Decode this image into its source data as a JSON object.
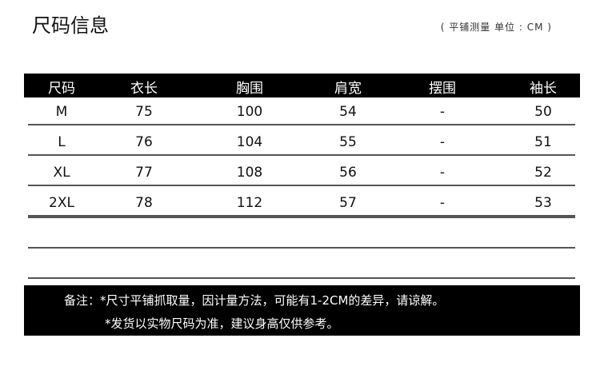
{
  "title": "尺码信息",
  "unit_note": "( 平铺测量  单位 : CM )",
  "table": {
    "headers": [
      "尺码",
      "衣长",
      "胸围",
      "肩宽",
      "摆围",
      "袖长"
    ],
    "rows": [
      [
        "M",
        "75",
        "100",
        "54",
        "-",
        "50"
      ],
      [
        "L",
        "76",
        "104",
        "55",
        "-",
        "51"
      ],
      [
        "XL",
        "77",
        "108",
        "56",
        "-",
        "52"
      ],
      [
        "2XL",
        "78",
        "112",
        "57",
        "-",
        "53"
      ]
    ]
  },
  "notes": {
    "line1": "备注：*尺寸平铺抓取量，因计量方法，可能有1-2CM的差异，请谅解。",
    "line2": "*发货以实物尺码为准，建议身高仅供参考。"
  }
}
